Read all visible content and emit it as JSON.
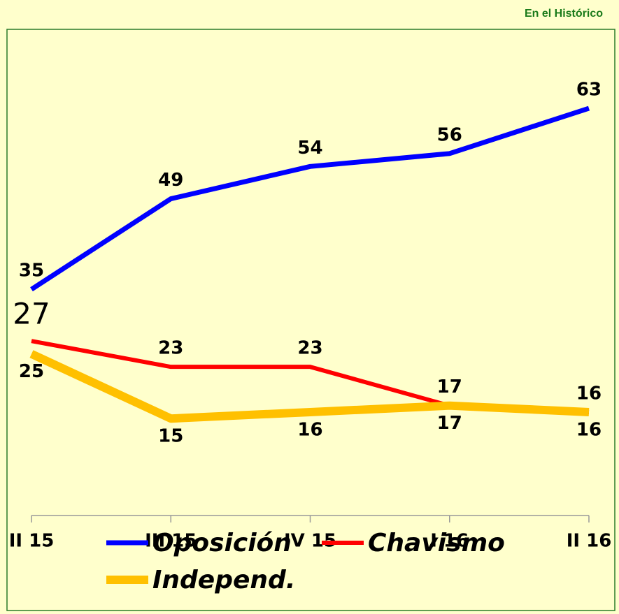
{
  "chart_data": {
    "type": "line",
    "note_title": "En el Histórico",
    "categories": [
      "II 15",
      "III 15",
      "IV 15",
      "I 16",
      "II 16"
    ],
    "series": [
      {
        "name": "Oposición",
        "color": "#0000ff",
        "values": [
          35,
          49,
          54,
          56,
          63
        ]
      },
      {
        "name": "Chavismo",
        "color": "#ff0000",
        "values": [
          27,
          23,
          23,
          17,
          16
        ]
      },
      {
        "name": "Independ.",
        "color": "#ffc000",
        "values": [
          25,
          15,
          16,
          17,
          16
        ]
      }
    ],
    "ylim": [
      0,
      75
    ]
  }
}
